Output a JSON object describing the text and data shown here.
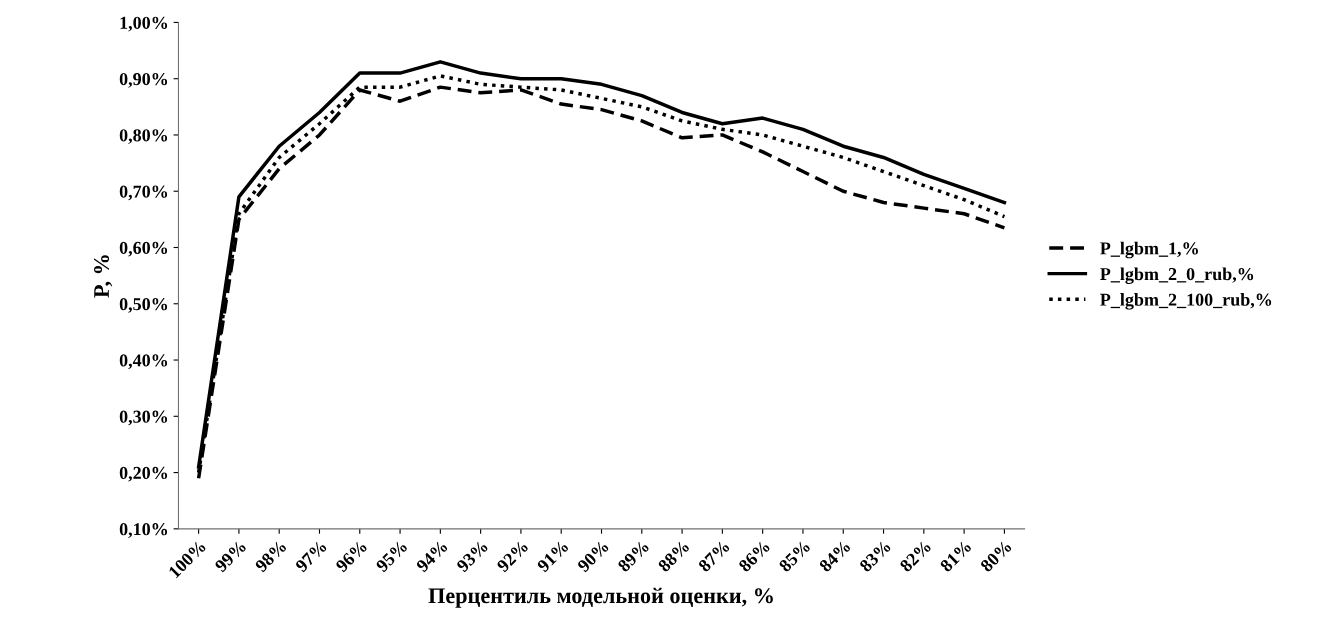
{
  "chart_data": {
    "type": "line",
    "xlabel": "Перцентиль модельной оценки, %",
    "ylabel": "P, %",
    "categories": [
      "100%",
      "99%",
      "98%",
      "97%",
      "96%",
      "95%",
      "94%",
      "93%",
      "92%",
      "91%",
      "90%",
      "89%",
      "88%",
      "87%",
      "86%",
      "85%",
      "84%",
      "83%",
      "82%",
      "81%",
      "80%"
    ],
    "series": [
      {
        "name": "P_lgbm_1,%",
        "color": "#000000",
        "line_style": "dashed",
        "values": [
          0.19,
          0.65,
          0.74,
          0.8,
          0.88,
          0.86,
          0.885,
          0.875,
          0.88,
          0.855,
          0.845,
          0.825,
          0.795,
          0.8,
          0.77,
          0.735,
          0.7,
          0.68,
          0.67,
          0.66,
          0.635
        ]
      },
      {
        "name": "P_lgbm_2_0_rub,%",
        "color": "#000000",
        "line_style": "solid",
        "values": [
          0.21,
          0.69,
          0.78,
          0.84,
          0.91,
          0.91,
          0.93,
          0.91,
          0.9,
          0.9,
          0.89,
          0.87,
          0.84,
          0.82,
          0.83,
          0.81,
          0.78,
          0.76,
          0.73,
          0.705,
          0.68
        ]
      },
      {
        "name": "P_lgbm_2_100_rub,%",
        "color": "#000000",
        "line_style": "dotted",
        "values": [
          0.2,
          0.66,
          0.76,
          0.82,
          0.885,
          0.885,
          0.905,
          0.89,
          0.885,
          0.88,
          0.865,
          0.85,
          0.825,
          0.81,
          0.8,
          0.78,
          0.76,
          0.735,
          0.71,
          0.685,
          0.655
        ]
      }
    ],
    "ylim": [
      0.1,
      1.0
    ],
    "yticks": [
      {
        "value": 0.1,
        "label": "0,10%"
      },
      {
        "value": 0.2,
        "label": "0,20%"
      },
      {
        "value": 0.3,
        "label": "0,30%"
      },
      {
        "value": 0.4,
        "label": "0,40%"
      },
      {
        "value": 0.5,
        "label": "0,50%"
      },
      {
        "value": 0.6,
        "label": "0,60%"
      },
      {
        "value": 0.7,
        "label": "0,70%"
      },
      {
        "value": 0.8,
        "label": "0,80%"
      },
      {
        "value": 0.9,
        "label": "0,90%"
      },
      {
        "value": 1.0,
        "label": "1,00%"
      }
    ],
    "grid": false,
    "legend": "right",
    "marker": "none"
  }
}
